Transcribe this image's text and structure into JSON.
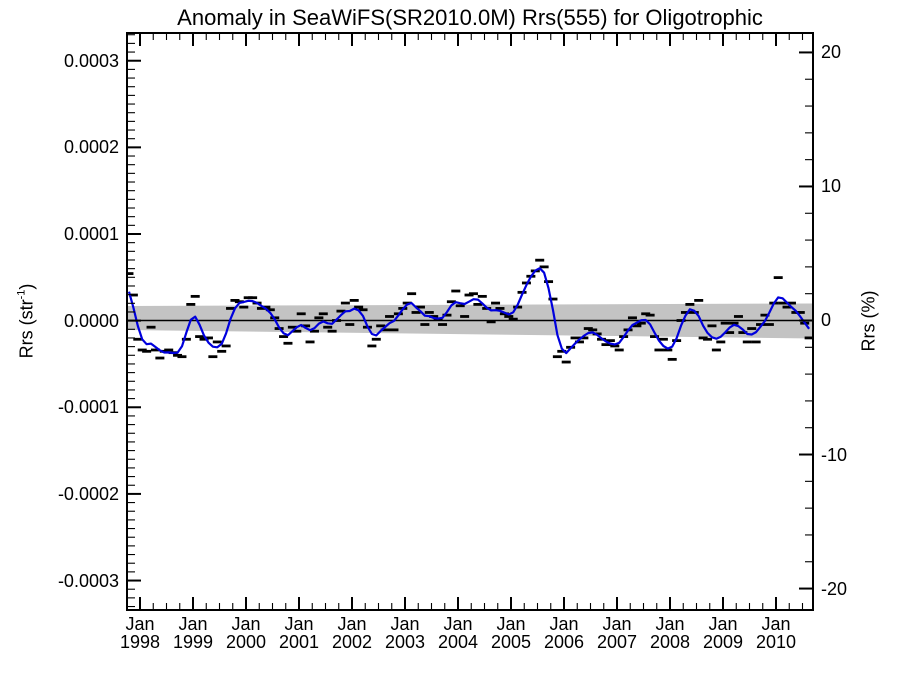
{
  "chart_data": {
    "type": "line",
    "title": "Anomaly in SeaWiFS(SR2010.0M) Rrs(555) for Oligotrophic",
    "left_axis": {
      "label_prefix": "Rrs (str",
      "label_sup": "-1",
      "label_suffix": ")",
      "tick_labels": [
        "0.0003",
        "0.0002",
        "0.0001",
        "0.0000",
        "-0.0001",
        "-0.0002",
        "-0.0003"
      ],
      "tick_values": [
        0.0003,
        0.0002,
        0.0001,
        0.0,
        -0.0001,
        -0.0002,
        -0.0003
      ],
      "minor_step": 1e-05,
      "lim": [
        -0.000334,
        0.000332
      ]
    },
    "right_axis": {
      "label": "Rrs (%)",
      "tick_labels": [
        "20",
        "10",
        "0",
        "-10",
        "-20"
      ],
      "tick_values": [
        20,
        10,
        0,
        -10,
        -20
      ],
      "minor_step": 2,
      "lim": [
        -21.6,
        21.45
      ]
    },
    "x_axis": {
      "month_label": "Jan",
      "tick_years": [
        "1998",
        "1999",
        "2000",
        "2001",
        "2002",
        "2003",
        "2004",
        "2005",
        "2006",
        "2007",
        "2008",
        "2009",
        "2010"
      ],
      "minor_ticks_per_year": 4,
      "start_month": "1997-10",
      "end_month": "2010-08"
    },
    "series": [
      {
        "name": "monthly-anomaly-markers",
        "style": "dash-markers",
        "color": "#000000",
        "units": "percent",
        "values": [
          3.5,
          1.9,
          -1.4,
          -2.2,
          -2.3,
          -0.5,
          -2.2,
          -2.8,
          -2.3,
          -2.2,
          -2.4,
          -2.6,
          -2.7,
          -1.4,
          1.2,
          1.8,
          -1.2,
          -1.4,
          -1.3,
          -2.7,
          -1.6,
          -2.3,
          -1.9,
          0.9,
          1.5,
          1.4,
          1.0,
          1.7,
          1.7,
          1.3,
          0.9,
          1.0,
          0.8,
          0.2,
          -0.6,
          -1.2,
          -1.7,
          -0.5,
          -0.8,
          0.5,
          -0.4,
          -1.6,
          -0.8,
          0.2,
          0.5,
          -0.5,
          -0.8,
          0.0,
          0.7,
          1.3,
          -0.3,
          1.5,
          1.0,
          0.8,
          -0.5,
          -1.9,
          -1.4,
          -0.4,
          -0.7,
          0.3,
          -0.7,
          0.5,
          0.9,
          1.3,
          2.0,
          0.6,
          1.0,
          -0.3,
          0.6,
          0.3,
          0.1,
          -0.3,
          0.4,
          1.4,
          2.2,
          1.1,
          0.3,
          1.9,
          2.0,
          1.2,
          1.8,
          0.9,
          -0.1,
          1.3,
          0.9,
          0.5,
          0.3,
          0.1,
          1.0,
          2.1,
          2.8,
          3.3,
          3.7,
          4.5,
          4.0,
          2.9,
          1.6,
          -2.7,
          -2.3,
          -3.1,
          -2.0,
          -1.3,
          -1.6,
          -1.3,
          -0.6,
          -0.7,
          -1.0,
          -1.4,
          -1.8,
          -1.5,
          -1.9,
          -2.2,
          -1.2,
          -0.7,
          0.2,
          -0.4,
          -0.2,
          0.5,
          0.4,
          -1.2,
          -2.2,
          -1.4,
          -2.2,
          -2.9,
          -1.5,
          0.0,
          0.6,
          1.2,
          0.6,
          1.5,
          -1.3,
          -1.4,
          -0.4,
          -2.2,
          -1.6,
          -0.2,
          -0.9,
          -0.2,
          0.3,
          -0.9,
          -1.6,
          -0.6,
          -1.6,
          -0.3,
          0.4,
          -0.3,
          1.3,
          3.2,
          1.3,
          1.0,
          1.3,
          0.6,
          0.6,
          -0.2,
          -1.3
        ]
      },
      {
        "name": "smoothed-anomaly-line",
        "style": "line",
        "color": "#0000dd",
        "derived": "weighted running mean of monthly anomaly",
        "smoothing_weights": [
          1,
          2,
          3,
          2,
          1
        ]
      }
    ],
    "trend_band": {
      "color": "#c3c3c3",
      "top_pct": [
        1.08,
        1.27
      ],
      "bottom_pct": [
        -0.71,
        -1.34
      ]
    },
    "zero_line": {
      "color": "#000000",
      "value": 0
    },
    "frame_color": "#000000",
    "grid": "off",
    "legend": "none"
  }
}
